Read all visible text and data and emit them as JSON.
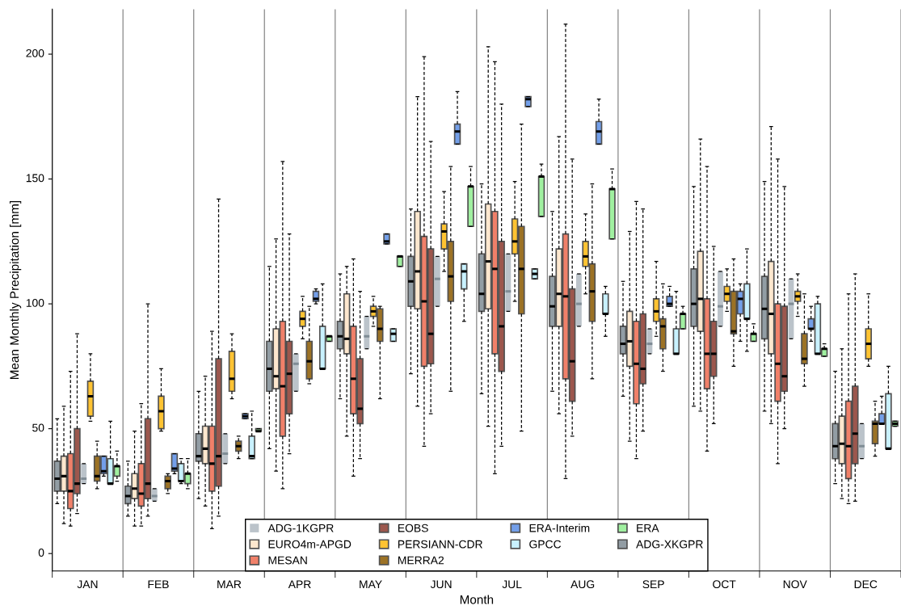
{
  "chart_data": {
    "type": "box",
    "xlabel": "Month",
    "ylabel": "Mean Monthly Precipitation [mm]",
    "categories": [
      "JAN",
      "FEB",
      "MAR",
      "APR",
      "MAY",
      "JUN",
      "JUL",
      "AUG",
      "SEP",
      "OCT",
      "NOV",
      "DEC"
    ],
    "ylim": [
      -7,
      218
    ],
    "yticks": [
      0,
      50,
      100,
      150,
      200
    ],
    "grid": "x",
    "legend": "bottom",
    "series": [
      {
        "name": "ADG-1KGPR",
        "color": "#b4bcc4",
        "boxes": [
          {
            "low": 28,
            "q1": 28,
            "median": 30,
            "q3": 36,
            "high": 36
          },
          {
            "low": 21,
            "q1": 21,
            "median": 23,
            "q3": 26,
            "high": 26
          },
          {
            "low": 36,
            "q1": 36,
            "median": 40,
            "q3": 48,
            "high": 48
          },
          {
            "low": 65,
            "q1": 65,
            "median": 76,
            "q3": 80,
            "high": 80
          },
          {
            "low": 82,
            "q1": 82,
            "median": 87,
            "q3": 95,
            "high": 95
          },
          {
            "low": 99,
            "q1": 99,
            "median": 110,
            "q3": 119,
            "high": 119
          },
          {
            "low": 97,
            "q1": 97,
            "median": 105,
            "q3": 120,
            "high": 120
          },
          {
            "low": 91,
            "q1": 91,
            "median": 100,
            "q3": 112,
            "high": 112
          },
          {
            "low": 80,
            "q1": 80,
            "median": 84,
            "q3": 90,
            "high": 90
          },
          {
            "low": 91,
            "q1": 91,
            "median": 99,
            "q3": 113,
            "high": 113
          },
          {
            "low": 86,
            "q1": 86,
            "median": 100,
            "q3": 110,
            "high": 110
          },
          {
            "low": 38,
            "q1": 38,
            "median": 43,
            "q3": 52,
            "high": 52
          }
        ]
      },
      {
        "name": "EURO4m-APGD",
        "color": "#fde3c6",
        "boxes": [
          {
            "low": 12,
            "q1": 25,
            "median": 31,
            "q3": 39,
            "high": 59
          },
          {
            "low": 11,
            "q1": 22,
            "median": 26,
            "q3": 32,
            "high": 49
          },
          {
            "low": 19,
            "q1": 36,
            "median": 42,
            "q3": 51,
            "high": 71
          },
          {
            "low": 33,
            "q1": 66,
            "median": 71,
            "q3": 90,
            "high": 126
          },
          {
            "low": 47,
            "q1": 80,
            "median": 86,
            "q3": 104,
            "high": 115
          },
          {
            "low": 59,
            "q1": 98,
            "median": 113,
            "q3": 137,
            "high": 183
          },
          {
            "low": 51,
            "q1": 98,
            "median": 117,
            "q3": 140,
            "high": 203
          },
          {
            "low": 56,
            "q1": 91,
            "median": 104,
            "q3": 122,
            "high": 167
          },
          {
            "low": 45,
            "q1": 75,
            "median": 85,
            "q3": 97,
            "high": 129
          },
          {
            "low": 57,
            "q1": 89,
            "median": 102,
            "q3": 121,
            "high": 166
          },
          {
            "low": 52,
            "q1": 80,
            "median": 96,
            "q3": 117,
            "high": 171
          },
          {
            "low": 22,
            "q1": 36,
            "median": 44,
            "q3": 55,
            "high": 82
          }
        ]
      },
      {
        "name": "MESAN",
        "color": "#ee6a50",
        "boxes": [
          {
            "low": 11,
            "q1": 18,
            "median": 25,
            "q3": 40,
            "high": 73
          },
          {
            "low": 11,
            "q1": 19,
            "median": 24,
            "q3": 36,
            "high": 60
          },
          {
            "low": 10,
            "q1": 25,
            "median": 36,
            "q3": 51,
            "high": 89
          },
          {
            "low": 26,
            "q1": 47,
            "median": 67,
            "q3": 93,
            "high": 157
          },
          {
            "low": 31,
            "q1": 56,
            "median": 70,
            "q3": 91,
            "high": 118
          },
          {
            "low": 43,
            "q1": 75,
            "median": 101,
            "q3": 127,
            "high": 199
          },
          {
            "low": 32,
            "q1": 80,
            "median": 114,
            "q3": 137,
            "high": 197
          },
          {
            "low": 30,
            "q1": 70,
            "median": 103,
            "q3": 128,
            "high": 212
          },
          {
            "low": 38,
            "q1": 60,
            "median": 76,
            "q3": 93,
            "high": 141
          },
          {
            "low": 41,
            "q1": 66,
            "median": 80,
            "q3": 102,
            "high": 155
          },
          {
            "low": 36,
            "q1": 61,
            "median": 76,
            "q3": 100,
            "high": 158
          },
          {
            "low": 20,
            "q1": 30,
            "median": 43,
            "q3": 61,
            "high": 104
          }
        ]
      },
      {
        "name": "EOBS",
        "color": "#8b3a2e",
        "boxes": [
          {
            "low": 16,
            "q1": 24,
            "median": 28,
            "q3": 50,
            "high": 88
          },
          {
            "low": 15,
            "q1": 22,
            "median": 28,
            "q3": 54,
            "high": 100
          },
          {
            "low": 15,
            "q1": 27,
            "median": 39,
            "q3": 78,
            "high": 142
          },
          {
            "low": 40,
            "q1": 56,
            "median": 72,
            "q3": 85,
            "high": 128
          },
          {
            "low": 38,
            "q1": 52,
            "median": 58,
            "q3": 78,
            "high": 105
          },
          {
            "low": 56,
            "q1": 76,
            "median": 88,
            "q3": 122,
            "high": 165
          },
          {
            "low": 43,
            "q1": 73,
            "median": 91,
            "q3": 125,
            "high": 180
          },
          {
            "low": 47,
            "q1": 61,
            "median": 77,
            "q3": 106,
            "high": 158
          },
          {
            "low": 49,
            "q1": 68,
            "median": 74,
            "q3": 96,
            "high": 138
          },
          {
            "low": 52,
            "q1": 71,
            "median": 80,
            "q3": 93,
            "high": 123
          },
          {
            "low": 50,
            "q1": 65,
            "median": 71,
            "q3": 99,
            "high": 147
          },
          {
            "low": 21,
            "q1": 36,
            "median": 48,
            "q3": 67,
            "high": 112
          }
        ]
      },
      {
        "name": "PERSIANN-CDR",
        "color": "#ffb90f",
        "boxes": [
          {
            "low": 53,
            "q1": 55,
            "median": 63,
            "q3": 69,
            "high": 80
          },
          {
            "low": 49,
            "q1": 50,
            "median": 57,
            "q3": 63,
            "high": 74
          },
          {
            "low": 62,
            "q1": 65,
            "median": 70,
            "q3": 81,
            "high": 88
          },
          {
            "low": 86,
            "q1": 91,
            "median": 94,
            "q3": 97,
            "high": 103
          },
          {
            "low": 91,
            "q1": 95,
            "median": 97,
            "q3": 99,
            "high": 103
          },
          {
            "low": 113,
            "q1": 122,
            "median": 129,
            "q3": 132,
            "high": 145
          },
          {
            "low": 101,
            "q1": 120,
            "median": 125,
            "q3": 134,
            "high": 149
          },
          {
            "low": 104,
            "q1": 115,
            "median": 119,
            "q3": 125,
            "high": 136
          },
          {
            "low": 87,
            "q1": 93,
            "median": 97,
            "q3": 102,
            "high": 117
          },
          {
            "low": 97,
            "q1": 101,
            "median": 104,
            "q3": 107,
            "high": 114
          },
          {
            "low": 95,
            "q1": 101,
            "median": 103,
            "q3": 105,
            "high": 112
          },
          {
            "low": 75,
            "q1": 78,
            "median": 84,
            "q3": 90,
            "high": 104
          }
        ]
      },
      {
        "name": "MERRA2",
        "color": "#8b5a00",
        "boxes": [
          {
            "low": 26,
            "q1": 29,
            "median": 31,
            "q3": 39,
            "high": 45
          },
          {
            "low": 24,
            "q1": 26,
            "median": 29,
            "q3": 31,
            "high": 32
          },
          {
            "low": 38,
            "q1": 41,
            "median": 43,
            "q3": 45,
            "high": 47
          },
          {
            "low": 68,
            "q1": 70,
            "median": 77,
            "q3": 85,
            "high": 99
          },
          {
            "low": 62,
            "q1": 85,
            "median": 90,
            "q3": 98,
            "high": 99
          },
          {
            "low": 65,
            "q1": 101,
            "median": 111,
            "q3": 125,
            "high": 155
          },
          {
            "low": 49,
            "q1": 96,
            "median": 114,
            "q3": 131,
            "high": 172
          },
          {
            "low": 70,
            "q1": 93,
            "median": 105,
            "q3": 116,
            "high": 148
          },
          {
            "low": 73,
            "q1": 82,
            "median": 91,
            "q3": 94,
            "high": 108
          },
          {
            "low": 75,
            "q1": 88,
            "median": 89,
            "q3": 105,
            "high": 118
          },
          {
            "low": 67,
            "q1": 76,
            "median": 78,
            "q3": 88,
            "high": 104
          },
          {
            "low": 39,
            "q1": 44,
            "median": 52,
            "q3": 53,
            "high": 61
          }
        ]
      },
      {
        "name": "ERA-Interim",
        "color": "#5b8fe6",
        "boxes": [
          {
            "low": 31,
            "q1": 32,
            "median": 33,
            "q3": 39,
            "high": 39
          },
          {
            "low": 32,
            "q1": 33,
            "median": 34,
            "q3": 40,
            "high": 40
          },
          {
            "low": 54,
            "q1": 54,
            "median": 55,
            "q3": 56,
            "high": 56
          },
          {
            "low": 100,
            "q1": 101,
            "median": 102,
            "q3": 105,
            "high": 106
          },
          {
            "low": 124,
            "q1": 124,
            "median": 125,
            "q3": 128,
            "high": 128
          },
          {
            "low": 164,
            "q1": 164,
            "median": 169,
            "q3": 172,
            "high": 185
          },
          {
            "low": 179,
            "q1": 179,
            "median": 182,
            "q3": 183,
            "high": 183
          },
          {
            "low": 164,
            "q1": 164,
            "median": 169,
            "q3": 173,
            "high": 182
          },
          {
            "low": 99,
            "q1": 99,
            "median": 100,
            "q3": 103,
            "high": 107
          },
          {
            "low": 85,
            "q1": 96,
            "median": 102,
            "q3": 105,
            "high": 108
          },
          {
            "low": 85,
            "q1": 90,
            "median": 90,
            "q3": 94,
            "high": 99
          },
          {
            "low": 52,
            "q1": 52,
            "median": 52,
            "q3": 56,
            "high": 63
          }
        ]
      },
      {
        "name": "GPCC",
        "color": "#bfefff",
        "boxes": [
          {
            "low": 28,
            "q1": 28,
            "median": 28,
            "q3": 38,
            "high": 53
          },
          {
            "low": 28,
            "q1": 29,
            "median": 29,
            "q3": 36,
            "high": 38
          },
          {
            "low": 38,
            "q1": 38,
            "median": 39,
            "q3": 47,
            "high": 57
          },
          {
            "low": 74,
            "q1": 74,
            "median": 74,
            "q3": 91,
            "high": 108
          },
          {
            "low": 85,
            "q1": 85,
            "median": 88,
            "q3": 90,
            "high": 90
          },
          {
            "low": 93,
            "q1": 106,
            "median": 113,
            "q3": 116,
            "high": 116
          },
          {
            "low": 110,
            "q1": 110,
            "median": 112,
            "q3": 114,
            "high": 114
          },
          {
            "low": 87,
            "q1": 96,
            "median": 96,
            "q3": 104,
            "high": 107
          },
          {
            "low": 80,
            "q1": 80,
            "median": 80,
            "q3": 90,
            "high": 105
          },
          {
            "low": 81,
            "q1": 94,
            "median": 94,
            "q3": 108,
            "high": 122
          },
          {
            "low": 80,
            "q1": 80,
            "median": 80,
            "q3": 100,
            "high": 103
          },
          {
            "low": 42,
            "q1": 42,
            "median": 42,
            "q3": 64,
            "high": 75
          }
        ]
      },
      {
        "name": "ERA",
        "color": "#90ee90",
        "boxes": [
          {
            "low": 29,
            "q1": 31,
            "median": 35,
            "q3": 35,
            "high": 41
          },
          {
            "low": 26,
            "q1": 28,
            "median": 32,
            "q3": 32,
            "high": 38
          },
          {
            "low": 49,
            "q1": 49,
            "median": 49,
            "q3": 50,
            "high": 50
          },
          {
            "low": 85,
            "q1": 85,
            "median": 87,
            "q3": 87,
            "high": 87
          },
          {
            "low": 115,
            "q1": 115,
            "median": 119,
            "q3": 119,
            "high": 119
          },
          {
            "low": 131,
            "q1": 131,
            "median": 147,
            "q3": 147,
            "high": 155
          },
          {
            "low": 135,
            "q1": 135,
            "median": 151,
            "q3": 151,
            "high": 156
          },
          {
            "low": 126,
            "q1": 126,
            "median": 146,
            "q3": 146,
            "high": 154
          },
          {
            "low": 90,
            "q1": 90,
            "median": 96,
            "q3": 96,
            "high": 99
          },
          {
            "low": 85,
            "q1": 85,
            "median": 88,
            "q3": 88,
            "high": 92
          },
          {
            "low": 79,
            "q1": 79,
            "median": 82,
            "q3": 82,
            "high": 84
          },
          {
            "low": 51,
            "q1": 51,
            "median": 52,
            "q3": 53,
            "high": 53
          }
        ]
      },
      {
        "name": "ADG-XKGPR",
        "color": "#7f8c95",
        "boxes": [
          {
            "low": 20,
            "q1": 25,
            "median": 30,
            "q3": 37,
            "high": 54
          },
          {
            "low": 15,
            "q1": 20,
            "median": 23,
            "q3": 27,
            "high": 37
          },
          {
            "low": 22,
            "q1": 37,
            "median": 39,
            "q3": 48,
            "high": 65
          },
          {
            "low": 42,
            "q1": 65,
            "median": 74,
            "q3": 85,
            "high": 115
          },
          {
            "low": 62,
            "q1": 82,
            "median": 87,
            "q3": 93,
            "high": 112
          },
          {
            "low": 72,
            "q1": 99,
            "median": 109,
            "q3": 119,
            "high": 138
          },
          {
            "low": 64,
            "q1": 97,
            "median": 104,
            "q3": 120,
            "high": 148
          },
          {
            "low": 65,
            "q1": 91,
            "median": 99,
            "q3": 111,
            "high": 137
          },
          {
            "low": 63,
            "q1": 80,
            "median": 84,
            "q3": 91,
            "high": 109
          },
          {
            "low": 59,
            "q1": 91,
            "median": 100,
            "q3": 114,
            "high": 147
          },
          {
            "low": 57,
            "q1": 86,
            "median": 98,
            "q3": 111,
            "high": 149
          },
          {
            "low": 28,
            "q1": 38,
            "median": 43,
            "q3": 52,
            "high": 73
          }
        ]
      }
    ]
  }
}
